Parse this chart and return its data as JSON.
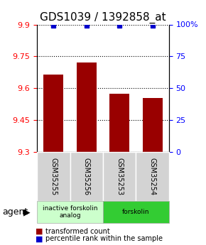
{
  "title": "GDS1039 / 1392858_at",
  "samples": [
    "GSM35255",
    "GSM35256",
    "GSM35253",
    "GSM35254"
  ],
  "bar_values": [
    9.665,
    9.72,
    9.575,
    9.555
  ],
  "percentile_values": [
    99,
    99,
    99,
    99
  ],
  "ylim_left": [
    9.3,
    9.9
  ],
  "ylim_right": [
    0,
    100
  ],
  "yticks_left": [
    9.3,
    9.45,
    9.6,
    9.75,
    9.9
  ],
  "ytick_labels_left": [
    "9.3",
    "9.45",
    "9.6",
    "9.75",
    "9.9"
  ],
  "yticks_right": [
    0,
    25,
    50,
    75,
    100
  ],
  "ytick_labels_right": [
    "0",
    "25",
    "50",
    "75",
    "100%"
  ],
  "bar_color": "#990000",
  "dot_color": "#0000cc",
  "bar_width": 0.6,
  "groups": [
    {
      "label": "inactive forskolin\nanalog",
      "color": "#ccffcc",
      "samples": [
        0,
        1
      ]
    },
    {
      "label": "forskolin",
      "color": "#33cc33",
      "samples": [
        2,
        3
      ]
    }
  ],
  "agent_label": "agent",
  "legend_bar_label": "transformed count",
  "legend_dot_label": "percentile rank within the sample",
  "title_fontsize": 11,
  "tick_fontsize": 8,
  "label_fontsize": 8
}
